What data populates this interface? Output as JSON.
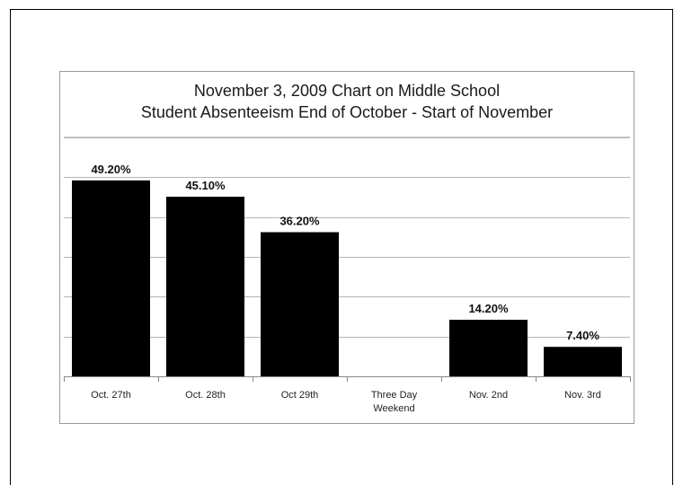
{
  "chart_data": {
    "type": "bar",
    "title": "November 3, 2009 Chart on Middle School",
    "subtitle": "Student Absenteeism End of October - Start of November",
    "categories": [
      [
        "Oct. 27th"
      ],
      [
        "Oct. 28th"
      ],
      [
        "Oct 29th"
      ],
      [
        "Three Day",
        "Weekend"
      ],
      [
        "Nov. 2nd"
      ],
      [
        "Nov. 3rd"
      ]
    ],
    "values": [
      49.2,
      45.1,
      36.2,
      null,
      14.2,
      7.4
    ],
    "data_labels": [
      "49.20%",
      "45.10%",
      "36.20%",
      "",
      "14.20%",
      "7.40%"
    ],
    "ylim": [
      0,
      60
    ],
    "y_gridlines": [
      10,
      20,
      30,
      40,
      50,
      60
    ],
    "xlabel": "",
    "ylabel": "",
    "grid": true,
    "legend": "none",
    "bar_color": "#000000"
  }
}
